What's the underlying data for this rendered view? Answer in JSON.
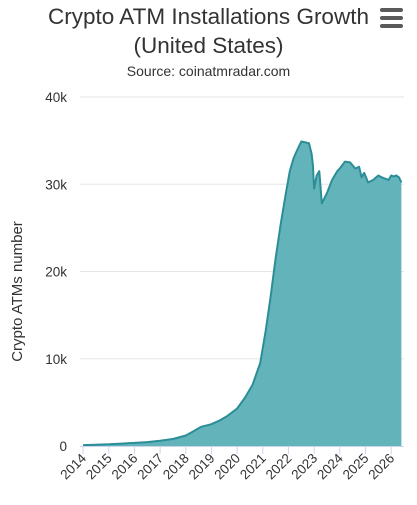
{
  "chart_data": {
    "type": "area",
    "title": "Crypto ATM Installations Growth (United States)",
    "title_lines": [
      "Crypto ATM Installations Growth",
      "(United States)"
    ],
    "subtitle": "Source: coinatmradar.com",
    "xlabel": "",
    "ylabel": "Crypto ATMs number",
    "ylim": [
      0,
      40000
    ],
    "y_ticks": [
      0,
      10000,
      20000,
      30000,
      40000
    ],
    "y_tick_labels": [
      "0",
      "10k",
      "20k",
      "30k",
      "40k"
    ],
    "x_ticks": [
      "2014",
      "2015",
      "2016",
      "2017",
      "2018",
      "2019",
      "2020",
      "2021",
      "2022",
      "2023",
      "2024",
      "2025",
      "2026"
    ],
    "grid": true,
    "legend": "none",
    "colors": {
      "fill": "#56aeb4",
      "line": "#2c8d96"
    },
    "x": [
      2014.0,
      2014.5,
      2015.0,
      2015.5,
      2016.0,
      2016.5,
      2017.0,
      2017.5,
      2018.0,
      2018.3,
      2018.6,
      2019.0,
      2019.3,
      2019.6,
      2020.0,
      2020.3,
      2020.6,
      2020.9,
      2021.1,
      2021.3,
      2021.5,
      2021.7,
      2021.9,
      2022.05,
      2022.2,
      2022.35,
      2022.5,
      2022.65,
      2022.8,
      2022.9,
      2022.95,
      2023.0,
      2023.1,
      2023.2,
      2023.3,
      2023.5,
      2023.7,
      2023.9,
      2024.0,
      2024.2,
      2024.4,
      2024.6,
      2024.75,
      2024.85,
      2024.95,
      2025.1,
      2025.3,
      2025.5,
      2025.7,
      2025.9,
      2026.0,
      2026.1,
      2026.2,
      2026.3,
      2026.4
    ],
    "values": [
      100,
      150,
      200,
      280,
      350,
      450,
      600,
      800,
      1200,
      1700,
      2200,
      2500,
      2900,
      3400,
      4300,
      5500,
      7000,
      9500,
      13000,
      17000,
      21500,
      25500,
      29000,
      31500,
      33000,
      34000,
      34900,
      34800,
      34700,
      33500,
      32200,
      29500,
      31000,
      31500,
      27800,
      29000,
      30500,
      31500,
      31800,
      32600,
      32500,
      31800,
      32000,
      30800,
      31300,
      30200,
      30500,
      31000,
      30700,
      30500,
      31000,
      30900,
      31000,
      30800,
      30200
    ]
  }
}
